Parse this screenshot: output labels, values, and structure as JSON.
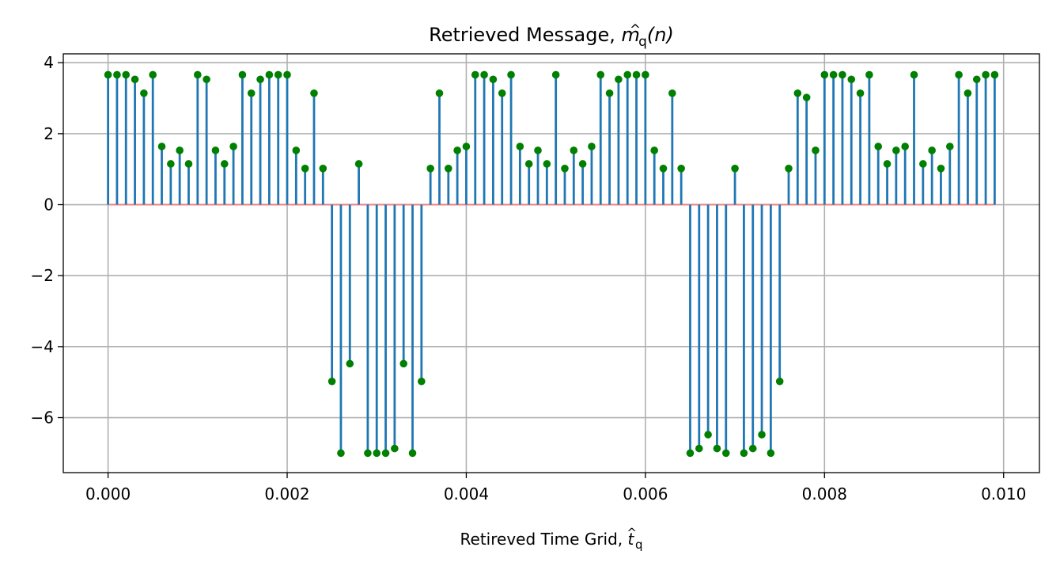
{
  "chart_data": {
    "type": "stem",
    "title": {
      "prefix": "Retrieved Message, ",
      "math_base": "m",
      "math_hat": "^",
      "math_sub": "q",
      "math_arg": "(n)"
    },
    "xlabel": {
      "prefix": "Retireved Time Grid, ",
      "math_base": "t",
      "math_hat": "^",
      "math_sub": "q"
    },
    "xlim": [
      -0.0005,
      0.0104
    ],
    "ylim": [
      -7.55,
      4.25
    ],
    "xticks": [
      0.0,
      0.002,
      0.004,
      0.006,
      0.008,
      0.01
    ],
    "xtick_labels": [
      "0.000",
      "0.002",
      "0.004",
      "0.006",
      "0.008",
      "0.010"
    ],
    "yticks": [
      -6,
      -4,
      -2,
      0,
      2,
      4
    ],
    "ytick_labels": [
      "−6",
      "−4",
      "−2",
      "0",
      "2",
      "4"
    ],
    "grid": true,
    "x_start": 0.0,
    "x_step": 0.0001,
    "values": [
      3.66,
      3.66,
      3.66,
      3.53,
      3.14,
      3.66,
      1.64,
      1.15,
      1.53,
      1.15,
      3.66,
      3.53,
      1.53,
      1.15,
      1.64,
      3.66,
      3.14,
      3.53,
      3.66,
      3.66,
      3.66,
      1.53,
      1.02,
      3.14,
      1.02,
      -4.98,
      -7.0,
      -4.48,
      1.15,
      -7.0,
      -7.0,
      -7.0,
      -6.87,
      -4.48,
      -7.0,
      -4.98,
      1.02,
      3.14,
      1.02,
      1.53,
      1.64,
      3.66,
      3.66,
      3.53,
      3.14,
      3.66,
      1.64,
      1.15,
      1.53,
      1.15,
      3.66,
      1.02,
      1.53,
      1.15,
      1.64,
      3.66,
      3.14,
      3.53,
      3.66,
      3.66,
      3.66,
      1.53,
      1.02,
      3.14,
      1.02,
      -7.0,
      -6.87,
      -6.48,
      -6.87,
      -7.0,
      1.02,
      -7.0,
      -6.87,
      -6.48,
      -7.0,
      -4.98,
      1.02,
      3.14,
      3.02,
      1.53,
      3.66,
      3.66,
      3.66,
      3.53,
      3.14,
      3.66,
      1.64,
      1.15,
      1.53,
      1.64,
      3.66,
      1.15,
      1.53,
      1.02,
      1.64,
      3.66,
      3.14,
      3.53,
      3.66,
      3.66
    ],
    "colors": {
      "stem": "#1f77b4",
      "marker": "#008000",
      "baseline": "#f08080",
      "grid": "#b0b0b0",
      "axes": "#000000"
    }
  }
}
